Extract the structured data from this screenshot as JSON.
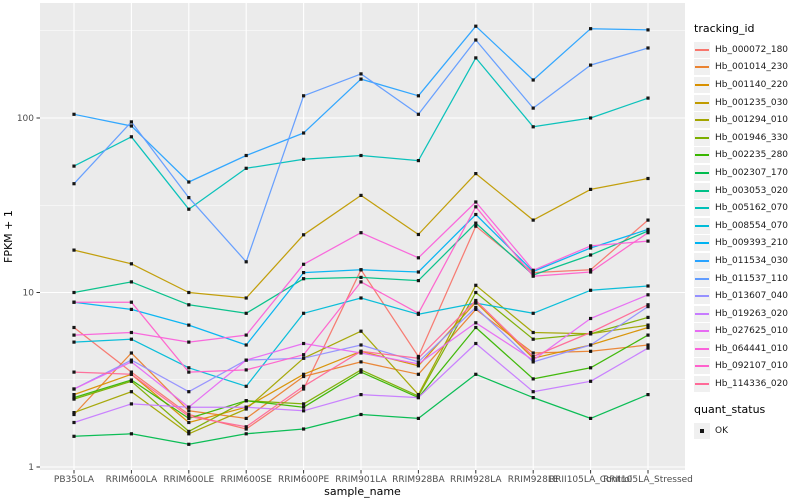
{
  "figure": {
    "x_axis_title": "sample_name",
    "y_axis_title": "FPKM + 1",
    "legend": {
      "tracking_title": "tracking_id",
      "quant_title": "quant_status",
      "quant_items": [
        {
          "label": "OK",
          "marker": "black-square"
        }
      ]
    }
  },
  "colors": {
    "panel_bg": "#EBEBEB",
    "grid": "#FFFFFF",
    "tick_label": "#4D4D4D",
    "tick_mark": "#333333",
    "point": "#151515",
    "legend_key_bg": "#F0F0F0"
  },
  "chart_data": {
    "type": "line",
    "title": "",
    "xlabel": "sample_name",
    "ylabel": "FPKM + 1",
    "y_scale": "log10",
    "y_ticks": [
      1,
      10,
      100
    ],
    "ylim": [
      0.96,
      437
    ],
    "grid": true,
    "legend_position": "right",
    "point_marker": "black-square",
    "categories": [
      "PB350LA",
      "RRIM600LA",
      "RRIM600LE",
      "RRIM600SE",
      "RRIM600PE",
      "RRIM901LA",
      "RRIM928BA",
      "RRIM928LA",
      "RRIM928LE",
      "RRII105LA_Control",
      "RRII105LA_Stressed"
    ],
    "series": [
      {
        "name": "Hb_000072_180",
        "color": "#F8766D",
        "values": [
          6.3,
          3.5,
          2.0,
          1.65,
          2.8,
          13.5,
          4.3,
          24,
          13,
          13.5,
          26
        ]
      },
      {
        "name": "Hb_001014_230",
        "color": "#EA8331",
        "values": [
          2.0,
          4.5,
          2.1,
          1.9,
          3.3,
          4.0,
          3.4,
          8.0,
          4.5,
          4.6,
          5.0
        ]
      },
      {
        "name": "Hb_001140_220",
        "color": "#D89000",
        "values": [
          2.6,
          3.4,
          1.8,
          2.2,
          3.4,
          4.6,
          3.8,
          8.8,
          4.2,
          5.0,
          6.3
        ]
      },
      {
        "name": "Hb_001235_030",
        "color": "#C09B00",
        "values": [
          17.5,
          14.6,
          10,
          9.3,
          21.4,
          36,
          21.5,
          48,
          26,
          39,
          45
        ]
      },
      {
        "name": "Hb_001294_010",
        "color": "#A3A500",
        "values": [
          2.05,
          2.7,
          1.55,
          2.15,
          4.2,
          6.0,
          2.6,
          11,
          5.9,
          5.8,
          6.5
        ]
      },
      {
        "name": "Hb_001946_330",
        "color": "#7CAE00",
        "values": [
          2.45,
          3.1,
          1.6,
          2.4,
          2.3,
          3.6,
          2.55,
          10,
          5.4,
          5.8,
          7.2
        ]
      },
      {
        "name": "Hb_002235_280",
        "color": "#39B600",
        "values": [
          2.5,
          3.15,
          1.9,
          2.4,
          2.2,
          3.5,
          2.5,
          6.3,
          3.2,
          3.7,
          5.7
        ]
      },
      {
        "name": "Hb_002307_170",
        "color": "#00BB4E",
        "values": [
          1.5,
          1.55,
          1.35,
          1.55,
          1.65,
          2.0,
          1.9,
          3.4,
          2.5,
          1.9,
          2.6
        ]
      },
      {
        "name": "Hb_003053_020",
        "color": "#00C087",
        "values": [
          10,
          11.5,
          8.5,
          7.6,
          12,
          12.2,
          11.7,
          25,
          12.6,
          16.4,
          22.5
        ]
      },
      {
        "name": "Hb_005162_070",
        "color": "#00C0B8",
        "values": [
          53,
          78,
          30,
          51.5,
          58,
          61,
          57,
          221,
          89,
          100,
          130
        ]
      },
      {
        "name": "Hb_008554_070",
        "color": "#00BCD8",
        "values": [
          5.2,
          5.4,
          3.7,
          2.9,
          7.6,
          9.3,
          7.5,
          8.7,
          7.6,
          10.3,
          10.9
        ]
      },
      {
        "name": "Hb_009393_210",
        "color": "#00B3F2",
        "values": [
          8.8,
          8.0,
          6.5,
          5.0,
          13.0,
          13.5,
          13.1,
          28,
          13.2,
          18,
          23
        ]
      },
      {
        "name": "Hb_011534_030",
        "color": "#29A3FF",
        "values": [
          105,
          90,
          43,
          61,
          82,
          167,
          134,
          336,
          165,
          325,
          320
        ]
      },
      {
        "name": "Hb_011537_110",
        "color": "#619CFF",
        "values": [
          42,
          95,
          35,
          15,
          134,
          179,
          105,
          280,
          114,
          201,
          252
        ]
      },
      {
        "name": "Hb_013607_040",
        "color": "#9590FF",
        "values": [
          2.8,
          4.1,
          2.7,
          4.1,
          4.2,
          5.0,
          4.0,
          8.2,
          4.0,
          5.0,
          8.3
        ]
      },
      {
        "name": "Hb_019263_020",
        "color": "#C77CFF",
        "values": [
          1.8,
          2.3,
          2.2,
          2.2,
          2.1,
          2.6,
          2.5,
          5.1,
          2.7,
          3.1,
          4.8
        ]
      },
      {
        "name": "Hb_027625_010",
        "color": "#E76BF3",
        "values": [
          2.8,
          4.0,
          2.2,
          4.1,
          5.1,
          4.5,
          3.9,
          6.7,
          4.1,
          7.1,
          9.7
        ]
      },
      {
        "name": "Hb_064441_010",
        "color": "#FA62DB",
        "values": [
          5.7,
          5.9,
          5.2,
          5.7,
          14.5,
          22,
          15.8,
          33,
          13.4,
          18.5,
          19.7
        ]
      },
      {
        "name": "Hb_092107_010",
        "color": "#FF61CC",
        "values": [
          8.8,
          8.8,
          3.5,
          3.6,
          4.4,
          11.5,
          7.6,
          31,
          12.4,
          13.1,
          22
        ]
      },
      {
        "name": "Hb_114336_020",
        "color": "#FF6A98",
        "values": [
          3.5,
          3.4,
          1.95,
          1.7,
          2.9,
          4.6,
          4.2,
          9.0,
          4.3,
          5.9,
          8.5
        ]
      }
    ]
  }
}
